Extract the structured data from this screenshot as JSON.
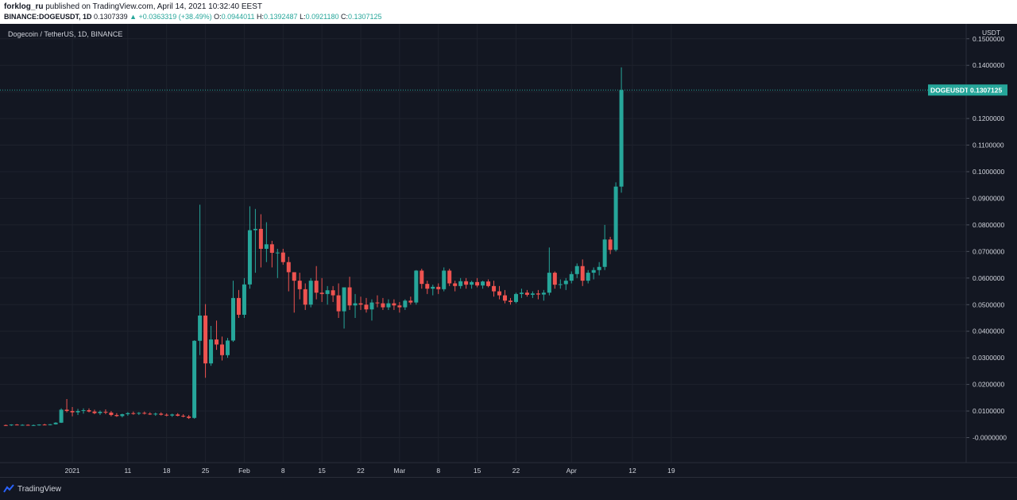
{
  "header": {
    "author": "forklog_ru",
    "published": "published on TradingView.com, April 14, 2021 10:32:40 EEST",
    "symbol_line": "BINANCE:DOGEUSDT, 1D",
    "last": "0.1307339",
    "change": "▲ +0.0363319 (+38.49%)",
    "o_label": "O:",
    "o_value": "0.0944011",
    "h_label": "H:",
    "h_value": "0.1392487",
    "l_label": "L:",
    "l_value": "0.0921180",
    "c_label": "C:",
    "c_value": "0.1307125"
  },
  "chart_title": "Dogecoin / TetherUS, 1D, BINANCE",
  "footer": {
    "brand": "TradingView"
  },
  "colors": {
    "up": "#26a69a",
    "down": "#ef5350",
    "background": "#131722",
    "grid": "#1e222d",
    "text": "#d1d4dc"
  },
  "chart_data": {
    "type": "candlestick",
    "title": "Dogecoin / TetherUS, 1D, BINANCE",
    "y_unit": "USDT",
    "ylim": [
      -0.002,
      0.152
    ],
    "y_ticks": [
      "0.1500000",
      "0.1400000",
      "0.1300000",
      "0.1200000",
      "0.1100000",
      "0.1000000",
      "0.0900000",
      "0.0800000",
      "0.0700000",
      "0.0600000",
      "0.0500000",
      "0.0400000",
      "0.0300000",
      "0.0200000",
      "0.0100000",
      "-0.0000000"
    ],
    "y_tick_values": [
      0.15,
      0.14,
      0.13,
      0.12,
      0.11,
      0.1,
      0.09,
      0.08,
      0.07,
      0.06,
      0.05,
      0.04,
      0.03,
      0.02,
      0.01,
      0.0
    ],
    "x_ticks": [
      {
        "label": "2021",
        "index": 12
      },
      {
        "label": "11",
        "index": 22
      },
      {
        "label": "18",
        "index": 29
      },
      {
        "label": "25",
        "index": 36
      },
      {
        "label": "Feb",
        "index": 43
      },
      {
        "label": "8",
        "index": 50
      },
      {
        "label": "15",
        "index": 57
      },
      {
        "label": "22",
        "index": 64
      },
      {
        "label": "Mar",
        "index": 71
      },
      {
        "label": "8",
        "index": 78
      },
      {
        "label": "15",
        "index": 85
      },
      {
        "label": "22",
        "index": 92
      },
      {
        "label": "Apr",
        "index": 102
      },
      {
        "label": "12",
        "index": 113
      },
      {
        "label": "19",
        "index": 120
      }
    ],
    "last_price_label": {
      "symbol": "DOGEUSDT",
      "value": "0.1307125",
      "price": 0.1307125
    },
    "candles": [
      [
        0.0047,
        0.0049,
        0.0044,
        0.0046
      ],
      [
        0.0046,
        0.005,
        0.0044,
        0.0049
      ],
      [
        0.0049,
        0.0051,
        0.0046,
        0.0047
      ],
      [
        0.0047,
        0.005,
        0.0045,
        0.0048
      ],
      [
        0.0048,
        0.005,
        0.0045,
        0.0046
      ],
      [
        0.0046,
        0.0049,
        0.0044,
        0.0047
      ],
      [
        0.0047,
        0.005,
        0.0045,
        0.0049
      ],
      [
        0.0049,
        0.0052,
        0.0047,
        0.0048
      ],
      [
        0.0048,
        0.0051,
        0.0046,
        0.005
      ],
      [
        0.005,
        0.0058,
        0.0049,
        0.0056
      ],
      [
        0.0056,
        0.011,
        0.0055,
        0.0105
      ],
      [
        0.0105,
        0.0145,
        0.0095,
        0.01
      ],
      [
        0.01,
        0.0115,
        0.008,
        0.0095
      ],
      [
        0.0095,
        0.0108,
        0.0085,
        0.01
      ],
      [
        0.01,
        0.011,
        0.009,
        0.0103
      ],
      [
        0.0103,
        0.011,
        0.0095,
        0.0098
      ],
      [
        0.0098,
        0.0105,
        0.0088,
        0.0092
      ],
      [
        0.0092,
        0.0102,
        0.0085,
        0.0097
      ],
      [
        0.0097,
        0.0106,
        0.0088,
        0.0094
      ],
      [
        0.0094,
        0.01,
        0.008,
        0.0085
      ],
      [
        0.0085,
        0.0092,
        0.0078,
        0.0081
      ],
      [
        0.0081,
        0.009,
        0.0076,
        0.0088
      ],
      [
        0.0088,
        0.0096,
        0.0082,
        0.0092
      ],
      [
        0.0092,
        0.0098,
        0.0086,
        0.009
      ],
      [
        0.009,
        0.0096,
        0.0085,
        0.0093
      ],
      [
        0.0093,
        0.0098,
        0.0087,
        0.009
      ],
      [
        0.009,
        0.0095,
        0.0085,
        0.0088
      ],
      [
        0.0088,
        0.0094,
        0.0082,
        0.009
      ],
      [
        0.009,
        0.0095,
        0.0083,
        0.0086
      ],
      [
        0.0086,
        0.0091,
        0.008,
        0.0083
      ],
      [
        0.0083,
        0.009,
        0.0078,
        0.0087
      ],
      [
        0.0087,
        0.0092,
        0.008,
        0.0082
      ],
      [
        0.0082,
        0.0088,
        0.0076,
        0.0079
      ],
      [
        0.0079,
        0.0085,
        0.007,
        0.0074
      ],
      [
        0.0074,
        0.0366,
        0.0071,
        0.0364
      ],
      [
        0.0364,
        0.0876,
        0.031,
        0.0459
      ],
      [
        0.0459,
        0.0502,
        0.0225,
        0.0279
      ],
      [
        0.0279,
        0.042,
        0.027,
        0.0369
      ],
      [
        0.0369,
        0.044,
        0.033,
        0.035
      ],
      [
        0.035,
        0.038,
        0.029,
        0.031
      ],
      [
        0.031,
        0.0375,
        0.03,
        0.0365
      ],
      [
        0.0365,
        0.059,
        0.036,
        0.0525
      ],
      [
        0.0525,
        0.0555,
        0.045,
        0.0462
      ],
      [
        0.0462,
        0.06,
        0.045,
        0.0576
      ],
      [
        0.0576,
        0.087,
        0.056,
        0.078
      ],
      [
        0.078,
        0.086,
        0.062,
        0.0785
      ],
      [
        0.0785,
        0.084,
        0.064,
        0.071
      ],
      [
        0.071,
        0.081,
        0.066,
        0.0727
      ],
      [
        0.0727,
        0.074,
        0.064,
        0.0695
      ],
      [
        0.0695,
        0.071,
        0.06,
        0.0696
      ],
      [
        0.0696,
        0.071,
        0.065,
        0.066
      ],
      [
        0.066,
        0.068,
        0.055,
        0.0622
      ],
      [
        0.0622,
        0.062,
        0.047,
        0.059
      ],
      [
        0.059,
        0.062,
        0.052,
        0.0558
      ],
      [
        0.0558,
        0.058,
        0.048,
        0.05
      ],
      [
        0.05,
        0.06,
        0.049,
        0.059
      ],
      [
        0.059,
        0.0645,
        0.052,
        0.0545
      ],
      [
        0.0545,
        0.06,
        0.051,
        0.054
      ],
      [
        0.054,
        0.057,
        0.05,
        0.0554
      ],
      [
        0.0554,
        0.057,
        0.051,
        0.0535
      ],
      [
        0.0535,
        0.058,
        0.045,
        0.0475
      ],
      [
        0.0475,
        0.056,
        0.041,
        0.0565
      ],
      [
        0.0565,
        0.0605,
        0.048,
        0.0497
      ],
      [
        0.0497,
        0.054,
        0.045,
        0.0505
      ],
      [
        0.0505,
        0.053,
        0.048,
        0.05
      ],
      [
        0.05,
        0.0525,
        0.047,
        0.0482
      ],
      [
        0.0482,
        0.052,
        0.044,
        0.0508
      ],
      [
        0.0508,
        0.0535,
        0.049,
        0.0505
      ],
      [
        0.0505,
        0.0525,
        0.048,
        0.049
      ],
      [
        0.049,
        0.052,
        0.048,
        0.0505
      ],
      [
        0.0505,
        0.052,
        0.048,
        0.0497
      ],
      [
        0.0497,
        0.051,
        0.047,
        0.049
      ],
      [
        0.049,
        0.052,
        0.048,
        0.0515
      ],
      [
        0.0515,
        0.053,
        0.05,
        0.0508
      ],
      [
        0.0508,
        0.063,
        0.05,
        0.0628
      ],
      [
        0.0628,
        0.0635,
        0.056,
        0.0578
      ],
      [
        0.0578,
        0.059,
        0.054,
        0.056
      ],
      [
        0.056,
        0.0575,
        0.0535,
        0.0567
      ],
      [
        0.0567,
        0.058,
        0.054,
        0.0558
      ],
      [
        0.0558,
        0.064,
        0.055,
        0.0628
      ],
      [
        0.0628,
        0.0635,
        0.057,
        0.058
      ],
      [
        0.058,
        0.059,
        0.055,
        0.057
      ],
      [
        0.057,
        0.06,
        0.056,
        0.0588
      ],
      [
        0.0588,
        0.06,
        0.056,
        0.0575
      ],
      [
        0.0575,
        0.059,
        0.056,
        0.0585
      ],
      [
        0.0585,
        0.06,
        0.0565,
        0.0572
      ],
      [
        0.0572,
        0.059,
        0.056,
        0.0587
      ],
      [
        0.0587,
        0.0595,
        0.0565,
        0.057
      ],
      [
        0.057,
        0.059,
        0.053,
        0.055
      ],
      [
        0.055,
        0.057,
        0.052,
        0.0535
      ],
      [
        0.0535,
        0.0555,
        0.0505,
        0.0515
      ],
      [
        0.0515,
        0.0525,
        0.05,
        0.051
      ],
      [
        0.051,
        0.0545,
        0.0505,
        0.054
      ],
      [
        0.054,
        0.056,
        0.0525,
        0.0545
      ],
      [
        0.0545,
        0.0555,
        0.053,
        0.0537
      ],
      [
        0.0537,
        0.055,
        0.0525,
        0.0542
      ],
      [
        0.0542,
        0.0555,
        0.052,
        0.0538
      ],
      [
        0.0538,
        0.0555,
        0.0515,
        0.0545
      ],
      [
        0.0545,
        0.0715,
        0.0535,
        0.062
      ],
      [
        0.062,
        0.0625,
        0.056,
        0.0575
      ],
      [
        0.0575,
        0.0595,
        0.056,
        0.0577
      ],
      [
        0.0577,
        0.06,
        0.0555,
        0.059
      ],
      [
        0.059,
        0.0625,
        0.058,
        0.0615
      ],
      [
        0.0615,
        0.0655,
        0.06,
        0.0645
      ],
      [
        0.0645,
        0.067,
        0.057,
        0.059
      ],
      [
        0.059,
        0.063,
        0.058,
        0.062
      ],
      [
        0.062,
        0.064,
        0.0595,
        0.063
      ],
      [
        0.063,
        0.066,
        0.061,
        0.0642
      ],
      [
        0.0642,
        0.08,
        0.063,
        0.0745
      ],
      [
        0.0745,
        0.0755,
        0.069,
        0.0706
      ],
      [
        0.0706,
        0.096,
        0.07,
        0.0944
      ],
      [
        0.0944,
        0.1392487,
        0.092118,
        0.1307125
      ]
    ]
  }
}
